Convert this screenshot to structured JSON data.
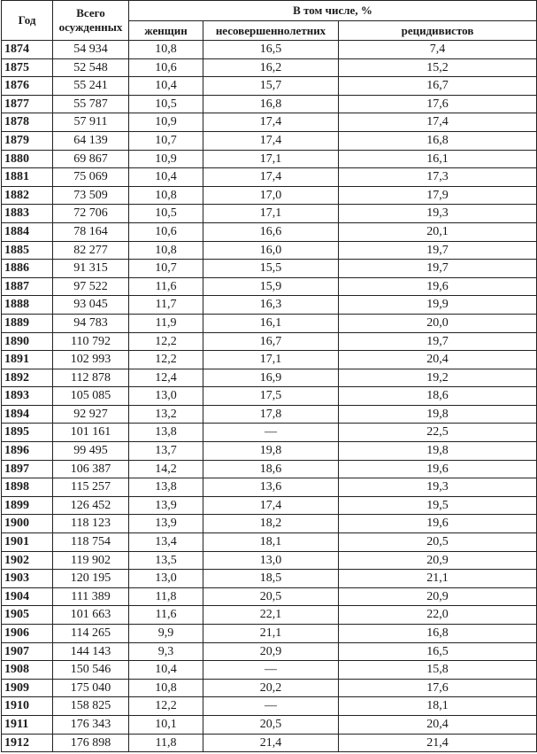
{
  "header": {
    "year": "Год",
    "total": "Всего осужденных",
    "group": "В том числе, %",
    "women": "женщин",
    "minors": "несовершеннолетних",
    "recidivists": "рецидивистов"
  },
  "rows": [
    [
      "1874",
      "54 934",
      "10,8",
      "16,5",
      "7,4"
    ],
    [
      "1875",
      "52 548",
      "10,6",
      "16,2",
      "15,2"
    ],
    [
      "1876",
      "55 241",
      "10,4",
      "15,7",
      "16,7"
    ],
    [
      "1877",
      "55 787",
      "10,5",
      "16,8",
      "17,6"
    ],
    [
      "1878",
      "57 911",
      "10,9",
      "17,4",
      "17,4"
    ],
    [
      "1879",
      "64 139",
      "10,7",
      "17,4",
      "16,8"
    ],
    [
      "1880",
      "69 867",
      "10,9",
      "17,1",
      "16,1"
    ],
    [
      "1881",
      "75 069",
      "10,4",
      "17,4",
      "17,3"
    ],
    [
      "1882",
      "73 509",
      "10,8",
      "17,0",
      "17,9"
    ],
    [
      "1883",
      "72 706",
      "10,5",
      "17,1",
      "19,3"
    ],
    [
      "1884",
      "78 164",
      "10,6",
      "16,6",
      "20,1"
    ],
    [
      "1885",
      "82 277",
      "10,8",
      "16,0",
      "19,7"
    ],
    [
      "1886",
      "91 315",
      "10,7",
      "15,5",
      "19,7"
    ],
    [
      "1887",
      "97 522",
      "11,6",
      "15,9",
      "19,6"
    ],
    [
      "1888",
      "93 045",
      "11,7",
      "16,3",
      "19,9"
    ],
    [
      "1889",
      "94 783",
      "11,9",
      "16,1",
      "20,0"
    ],
    [
      "1890",
      "110 792",
      "12,2",
      "16,7",
      "19,7"
    ],
    [
      "1891",
      "102 993",
      "12,2",
      "17,1",
      "20,4"
    ],
    [
      "1892",
      "112 878",
      "12,4",
      "16,9",
      "19,2"
    ],
    [
      "1893",
      "105 085",
      "13,0",
      "17,5",
      "18,6"
    ],
    [
      "1894",
      "92 927",
      "13,2",
      "17,8",
      "19,8"
    ],
    [
      "1895",
      "101 161",
      "13,8",
      "—",
      "22,5"
    ],
    [
      "1896",
      "99 495",
      "13,7",
      "19,8",
      "19,8"
    ],
    [
      "1897",
      "106 387",
      "14,2",
      "18,6",
      "19,6"
    ],
    [
      "1898",
      "115 257",
      "13,8",
      "13,6",
      "19,3"
    ],
    [
      "1899",
      "126 452",
      "13,9",
      "17,4",
      "19,5"
    ],
    [
      "1900",
      "118 123",
      "13,9",
      "18,2",
      "19,6"
    ],
    [
      "1901",
      "118 754",
      "13,4",
      "18,1",
      "20,5"
    ],
    [
      "1902",
      "119 902",
      "13,5",
      "13,0",
      "20,9"
    ],
    [
      "1903",
      "120 195",
      "13,0",
      "18,5",
      "21,1"
    ],
    [
      "1904",
      "111 389",
      "11,8",
      "20,5",
      "20,9"
    ],
    [
      "1905",
      "101 663",
      "11,6",
      "22,1",
      "22,0"
    ],
    [
      "1906",
      "114 265",
      "9,9",
      "21,1",
      "16,8"
    ],
    [
      "1907",
      "144 143",
      "9,3",
      "20,9",
      "16,5"
    ],
    [
      "1908",
      "150 546",
      "10,4",
      "—",
      "15,8"
    ],
    [
      "1909",
      "175 040",
      "10,8",
      "20,2",
      "17,6"
    ],
    [
      "1910",
      "158 825",
      "12,2",
      "—",
      "18,1"
    ],
    [
      "1911",
      "176 343",
      "10,1",
      "20,5",
      "20,4"
    ],
    [
      "1912",
      "176 898",
      "11,8",
      "21,4",
      "21,4"
    ]
  ]
}
